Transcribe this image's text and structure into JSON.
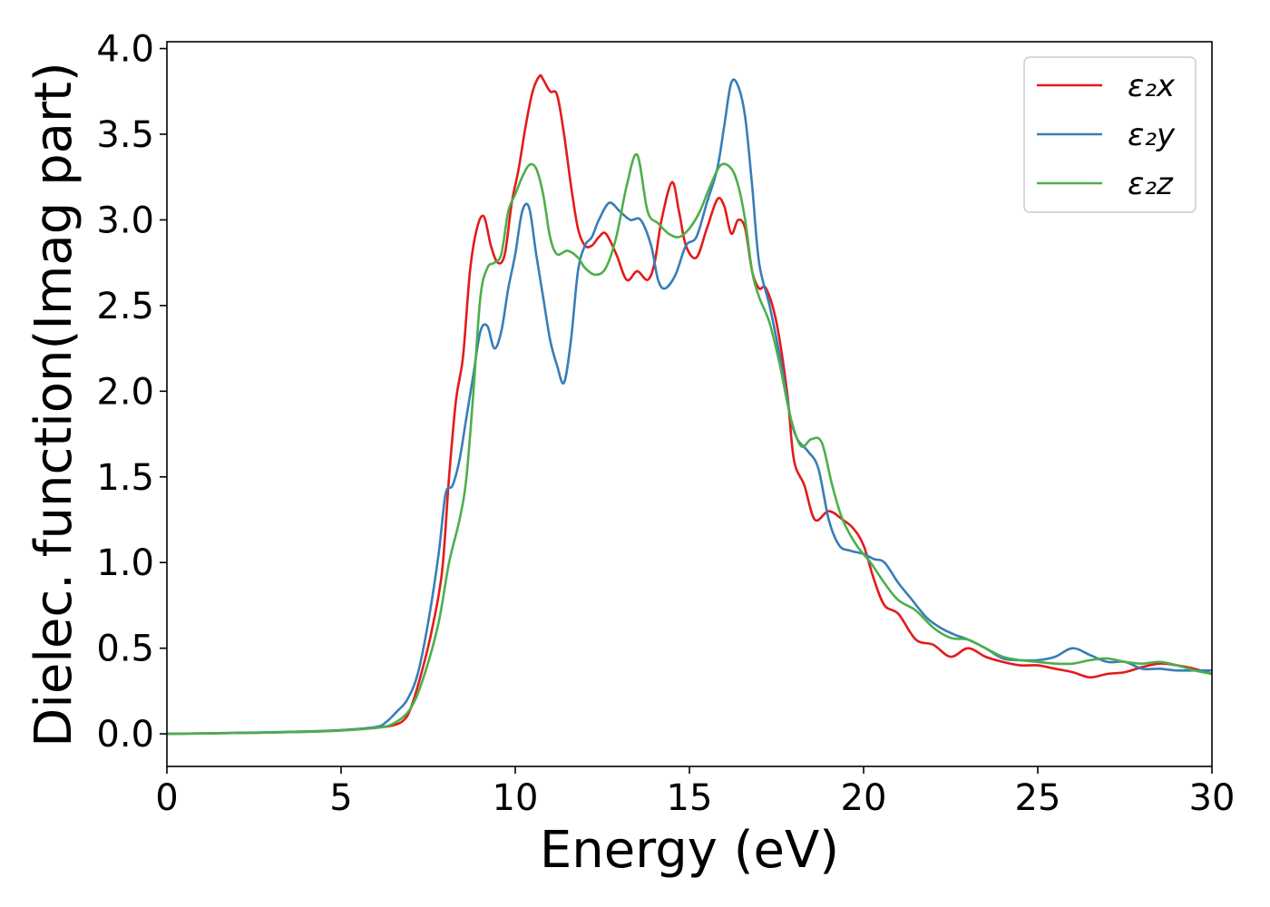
{
  "chart_data": {
    "type": "line",
    "title": "",
    "xlabel": "Energy (eV)",
    "ylabel": "Dielec. function(Imag part)",
    "xlim": [
      0,
      30
    ],
    "ylim": [
      -0.19,
      4.04
    ],
    "xticks": [
      0,
      5,
      10,
      15,
      20,
      25,
      30
    ],
    "xtick_labels": [
      "0",
      "5",
      "10",
      "15",
      "20",
      "25",
      "30"
    ],
    "yticks": [
      0.0,
      0.5,
      1.0,
      1.5,
      2.0,
      2.5,
      3.0,
      3.5,
      4.0
    ],
    "ytick_labels": [
      "0.0",
      "0.5",
      "1.0",
      "1.5",
      "2.0",
      "2.5",
      "3.0",
      "3.5",
      "4.0"
    ],
    "grid": false,
    "legend_position": "top-right",
    "series": [
      {
        "name": "ε₂x",
        "color": "#e41a1c",
        "x": [
          0,
          2,
          4,
          5,
          6,
          6.5,
          6.8,
          7,
          7.3,
          7.6,
          7.9,
          8.1,
          8.3,
          8.5,
          8.7,
          8.9,
          9.1,
          9.3,
          9.5,
          9.7,
          9.9,
          10.1,
          10.3,
          10.5,
          10.7,
          10.8,
          11,
          11.2,
          11.4,
          11.6,
          11.8,
          12,
          12.2,
          12.4,
          12.6,
          12.9,
          13.2,
          13.5,
          13.8,
          14.0,
          14.2,
          14.5,
          14.7,
          14.9,
          15.2,
          15.5,
          15.8,
          16.0,
          16.2,
          16.4,
          16.6,
          16.8,
          17.0,
          17.2,
          17.5,
          17.8,
          18.0,
          18.3,
          18.6,
          19.0,
          19.4,
          19.7,
          20.0,
          20.3,
          20.6,
          21.0,
          21.5,
          22.0,
          22.5,
          23.0,
          23.5,
          24.0,
          24.5,
          25.0,
          25.5,
          26.0,
          26.5,
          27.0,
          27.5,
          28.0,
          28.5,
          29.0,
          29.5,
          30.0
        ],
        "y": [
          0,
          0.005,
          0.012,
          0.02,
          0.035,
          0.05,
          0.08,
          0.15,
          0.35,
          0.6,
          0.95,
          1.5,
          1.95,
          2.2,
          2.7,
          2.95,
          3.02,
          2.85,
          2.75,
          2.8,
          3.1,
          3.3,
          3.55,
          3.75,
          3.84,
          3.82,
          3.75,
          3.73,
          3.5,
          3.2,
          2.95,
          2.85,
          2.85,
          2.9,
          2.92,
          2.8,
          2.65,
          2.7,
          2.65,
          2.75,
          3.0,
          3.22,
          3.05,
          2.85,
          2.78,
          2.95,
          3.12,
          3.08,
          2.92,
          3.0,
          2.95,
          2.7,
          2.6,
          2.6,
          2.4,
          2.0,
          1.6,
          1.45,
          1.25,
          1.3,
          1.25,
          1.2,
          1.1,
          0.9,
          0.75,
          0.7,
          0.55,
          0.52,
          0.45,
          0.5,
          0.45,
          0.42,
          0.4,
          0.4,
          0.38,
          0.36,
          0.33,
          0.35,
          0.36,
          0.39,
          0.41,
          0.4,
          0.38,
          0.35
        ]
      },
      {
        "name": "ε₂y",
        "color": "#377eb8",
        "x": [
          0,
          2,
          4,
          5,
          6,
          6.3,
          6.6,
          6.9,
          7.2,
          7.5,
          7.8,
          8.0,
          8.2,
          8.4,
          8.6,
          8.8,
          9.0,
          9.2,
          9.4,
          9.6,
          9.8,
          10.0,
          10.2,
          10.4,
          10.6,
          10.8,
          11.0,
          11.2,
          11.4,
          11.6,
          11.8,
          12.0,
          12.2,
          12.4,
          12.7,
          13.0,
          13.3,
          13.6,
          13.9,
          14.1,
          14.3,
          14.6,
          14.9,
          15.2,
          15.5,
          15.8,
          16.0,
          16.2,
          16.4,
          16.6,
          16.8,
          17.0,
          17.3,
          17.6,
          17.9,
          18.1,
          18.4,
          18.7,
          19.0,
          19.3,
          19.6,
          20.0,
          20.3,
          20.6,
          21.0,
          21.4,
          21.8,
          22.2,
          22.6,
          23.0,
          23.5,
          24.0,
          24.5,
          25.0,
          25.5,
          26.0,
          26.5,
          27.0,
          27.5,
          28.0,
          28.5,
          29.0,
          29.5,
          30.0
        ],
        "y": [
          0,
          0.006,
          0.014,
          0.022,
          0.04,
          0.07,
          0.13,
          0.2,
          0.35,
          0.65,
          1.05,
          1.4,
          1.45,
          1.6,
          1.85,
          2.1,
          2.35,
          2.38,
          2.25,
          2.35,
          2.6,
          2.8,
          3.05,
          3.07,
          2.8,
          2.55,
          2.3,
          2.15,
          2.05,
          2.3,
          2.7,
          2.85,
          2.9,
          3.0,
          3.1,
          3.05,
          3.0,
          3.0,
          2.85,
          2.65,
          2.6,
          2.68,
          2.85,
          2.9,
          3.1,
          3.3,
          3.55,
          3.8,
          3.78,
          3.6,
          3.2,
          2.75,
          2.5,
          2.2,
          1.85,
          1.72,
          1.65,
          1.55,
          1.25,
          1.1,
          1.07,
          1.05,
          1.02,
          1.0,
          0.88,
          0.78,
          0.68,
          0.62,
          0.58,
          0.55,
          0.5,
          0.44,
          0.43,
          0.43,
          0.45,
          0.5,
          0.46,
          0.42,
          0.42,
          0.38,
          0.38,
          0.37,
          0.37,
          0.37
        ]
      },
      {
        "name": "ε₂z",
        "color": "#4daf4a",
        "x": [
          0,
          2,
          4,
          5,
          6,
          6.5,
          7.0,
          7.4,
          7.8,
          8.1,
          8.4,
          8.6,
          8.8,
          9.0,
          9.2,
          9.4,
          9.6,
          9.8,
          10.0,
          10.2,
          10.4,
          10.6,
          10.8,
          11.0,
          11.2,
          11.5,
          11.8,
          12.0,
          12.3,
          12.6,
          12.9,
          13.2,
          13.5,
          13.8,
          14.1,
          14.4,
          14.7,
          15.0,
          15.3,
          15.6,
          15.9,
          16.2,
          16.4,
          16.6,
          16.8,
          17.0,
          17.3,
          17.6,
          17.9,
          18.2,
          18.5,
          18.8,
          19.1,
          19.4,
          19.8,
          20.2,
          20.6,
          21.0,
          21.5,
          22.0,
          22.5,
          23.0,
          23.5,
          24.0,
          24.5,
          25.0,
          25.5,
          26.0,
          26.5,
          27.0,
          27.5,
          28.0,
          28.5,
          29.0,
          29.5,
          30.0
        ],
        "y": [
          0,
          0.005,
          0.012,
          0.02,
          0.035,
          0.06,
          0.15,
          0.35,
          0.65,
          1.0,
          1.25,
          1.5,
          2.0,
          2.55,
          2.72,
          2.75,
          2.8,
          3.05,
          3.15,
          3.25,
          3.32,
          3.3,
          3.15,
          2.9,
          2.8,
          2.82,
          2.78,
          2.72,
          2.68,
          2.72,
          2.9,
          3.2,
          3.38,
          3.05,
          2.98,
          2.92,
          2.9,
          2.95,
          3.05,
          3.2,
          3.32,
          3.3,
          3.2,
          3.0,
          2.7,
          2.55,
          2.4,
          2.15,
          1.85,
          1.68,
          1.72,
          1.7,
          1.45,
          1.25,
          1.1,
          1.0,
          0.88,
          0.78,
          0.72,
          0.62,
          0.56,
          0.55,
          0.5,
          0.45,
          0.43,
          0.42,
          0.41,
          0.41,
          0.43,
          0.44,
          0.42,
          0.41,
          0.42,
          0.4,
          0.37,
          0.35
        ]
      }
    ]
  }
}
